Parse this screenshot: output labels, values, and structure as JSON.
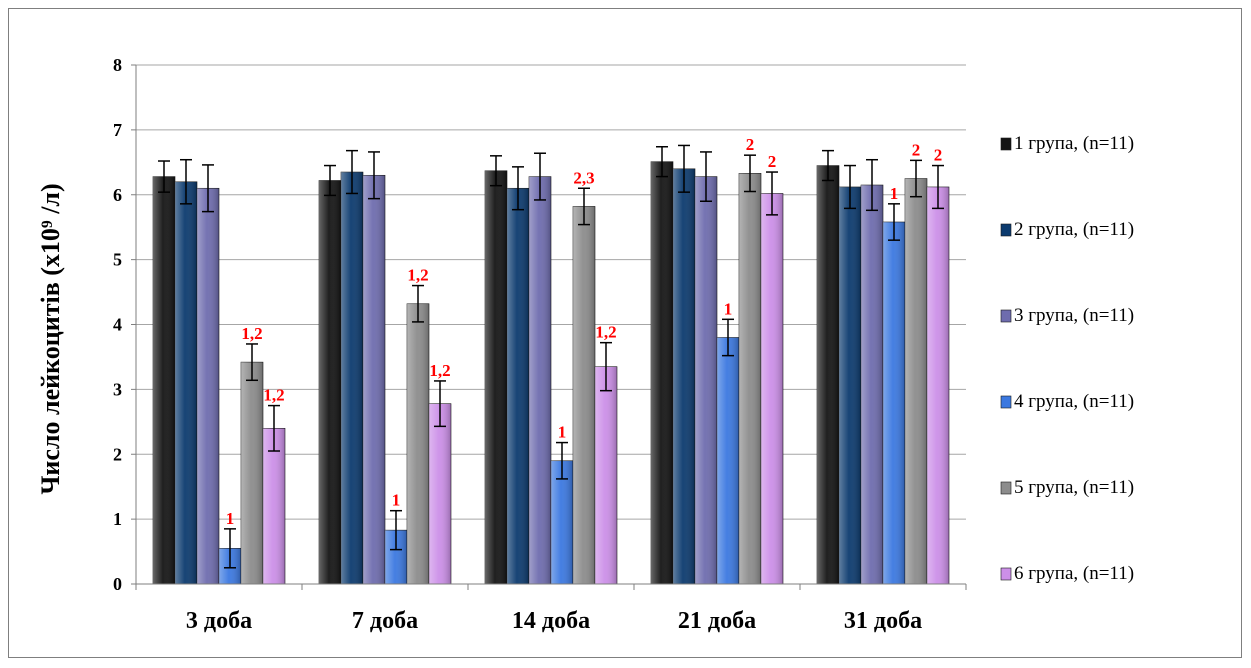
{
  "chart_data": {
    "type": "bar",
    "ylabel": "Число лейкоцитів (x10⁹ /л)",
    "xlabel": "",
    "ylim": [
      0,
      8
    ],
    "yticks": [
      0,
      1,
      2,
      3,
      4,
      5,
      6,
      7,
      8
    ],
    "grid": true,
    "legend_position": "right",
    "categories": [
      "3 доба",
      "7 доба",
      "14 доба",
      "21 доба",
      "31 доба"
    ],
    "series": [
      {
        "name": "1 група, (n=11)",
        "color": "#141414",
        "values": [
          6.28,
          6.22,
          6.37,
          6.51,
          6.45
        ],
        "errors": [
          0.24,
          0.23,
          0.23,
          0.23,
          0.23
        ],
        "labels": [
          "",
          "",
          "",
          "",
          ""
        ]
      },
      {
        "name": "2 група, (n=11)",
        "color": "#0b3a6e",
        "values": [
          6.2,
          6.35,
          6.1,
          6.4,
          6.12
        ],
        "errors": [
          0.34,
          0.33,
          0.33,
          0.36,
          0.33
        ],
        "labels": [
          "",
          "",
          "",
          "",
          ""
        ]
      },
      {
        "name": "3 група, (n=11)",
        "color": "#6e6cae",
        "values": [
          6.1,
          6.3,
          6.28,
          6.28,
          6.15
        ],
        "errors": [
          0.36,
          0.36,
          0.36,
          0.38,
          0.39
        ],
        "labels": [
          "",
          "",
          "",
          "",
          ""
        ]
      },
      {
        "name": "4 група, (n=11)",
        "color": "#3b78e0",
        "values": [
          0.55,
          0.83,
          1.9,
          3.8,
          5.58
        ],
        "errors": [
          0.3,
          0.3,
          0.28,
          0.28,
          0.28
        ],
        "labels": [
          "1",
          "1",
          "1",
          "1",
          "1"
        ]
      },
      {
        "name": "5 група, (n=11)",
        "color": "#8c8c8c",
        "values": [
          3.42,
          4.32,
          5.82,
          6.33,
          6.25
        ],
        "errors": [
          0.28,
          0.28,
          0.28,
          0.28,
          0.28
        ],
        "labels": [
          "1,2",
          "1,2",
          "2,3",
          "2",
          "2"
        ]
      },
      {
        "name": "6 група, (n=11)",
        "color": "#cc8fe8",
        "values": [
          2.4,
          2.78,
          3.35,
          6.02,
          6.12
        ],
        "errors": [
          0.35,
          0.35,
          0.37,
          0.33,
          0.33
        ],
        "labels": [
          "1,2",
          "1,2",
          "1,2",
          "2",
          "2"
        ]
      }
    ]
  }
}
